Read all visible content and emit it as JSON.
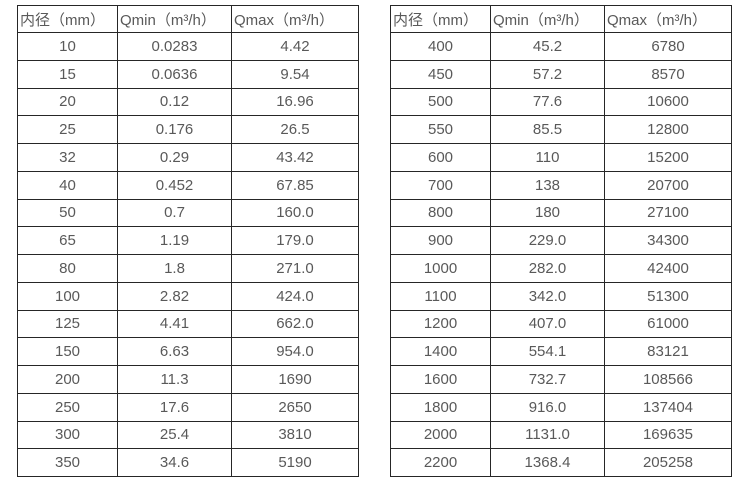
{
  "page": {
    "background_color": "#ffffff",
    "text_color": "#595959",
    "border_color": "#262626"
  },
  "tables": [
    {
      "name": "small-diameters",
      "headers": [
        "内径（mm）",
        "Qmin（m³/h）",
        "Qmax（m³/h）"
      ],
      "rows": [
        [
          "10",
          "0.0283",
          "4.42"
        ],
        [
          "15",
          "0.0636",
          "9.54"
        ],
        [
          "20",
          "0.12",
          "16.96"
        ],
        [
          "25",
          "0.176",
          "26.5"
        ],
        [
          "32",
          "0.29",
          "43.42"
        ],
        [
          "40",
          "0.452",
          "67.85"
        ],
        [
          "50",
          "0.7",
          "160.0"
        ],
        [
          "65",
          "1.19",
          "179.0"
        ],
        [
          "80",
          "1.8",
          "271.0"
        ],
        [
          "100",
          "2.82",
          "424.0"
        ],
        [
          "125",
          "4.41",
          "662.0"
        ],
        [
          "150",
          "6.63",
          "954.0"
        ],
        [
          "200",
          "11.3",
          "1690"
        ],
        [
          "250",
          "17.6",
          "2650"
        ],
        [
          "300",
          "25.4",
          "3810"
        ],
        [
          "350",
          "34.6",
          "5190"
        ]
      ]
    },
    {
      "name": "large-diameters",
      "headers": [
        "内径（mm）",
        "Qmin（m³/h）",
        "Qmax（m³/h）"
      ],
      "rows": [
        [
          "400",
          "45.2",
          "6780"
        ],
        [
          "450",
          "57.2",
          "8570"
        ],
        [
          "500",
          "77.6",
          "10600"
        ],
        [
          "550",
          "85.5",
          "12800"
        ],
        [
          "600",
          "110",
          "15200"
        ],
        [
          "700",
          "138",
          "20700"
        ],
        [
          "800",
          "180",
          "27100"
        ],
        [
          "900",
          "229.0",
          "34300"
        ],
        [
          "1000",
          "282.0",
          "42400"
        ],
        [
          "1100",
          "342.0",
          "51300"
        ],
        [
          "1200",
          "407.0",
          "61000"
        ],
        [
          "1400",
          "554.1",
          "83121"
        ],
        [
          "1600",
          "732.7",
          "108566"
        ],
        [
          "1800",
          "916.0",
          "137404"
        ],
        [
          "2000",
          "1131.0",
          "169635"
        ],
        [
          "2200",
          "1368.4",
          "205258"
        ]
      ]
    }
  ]
}
